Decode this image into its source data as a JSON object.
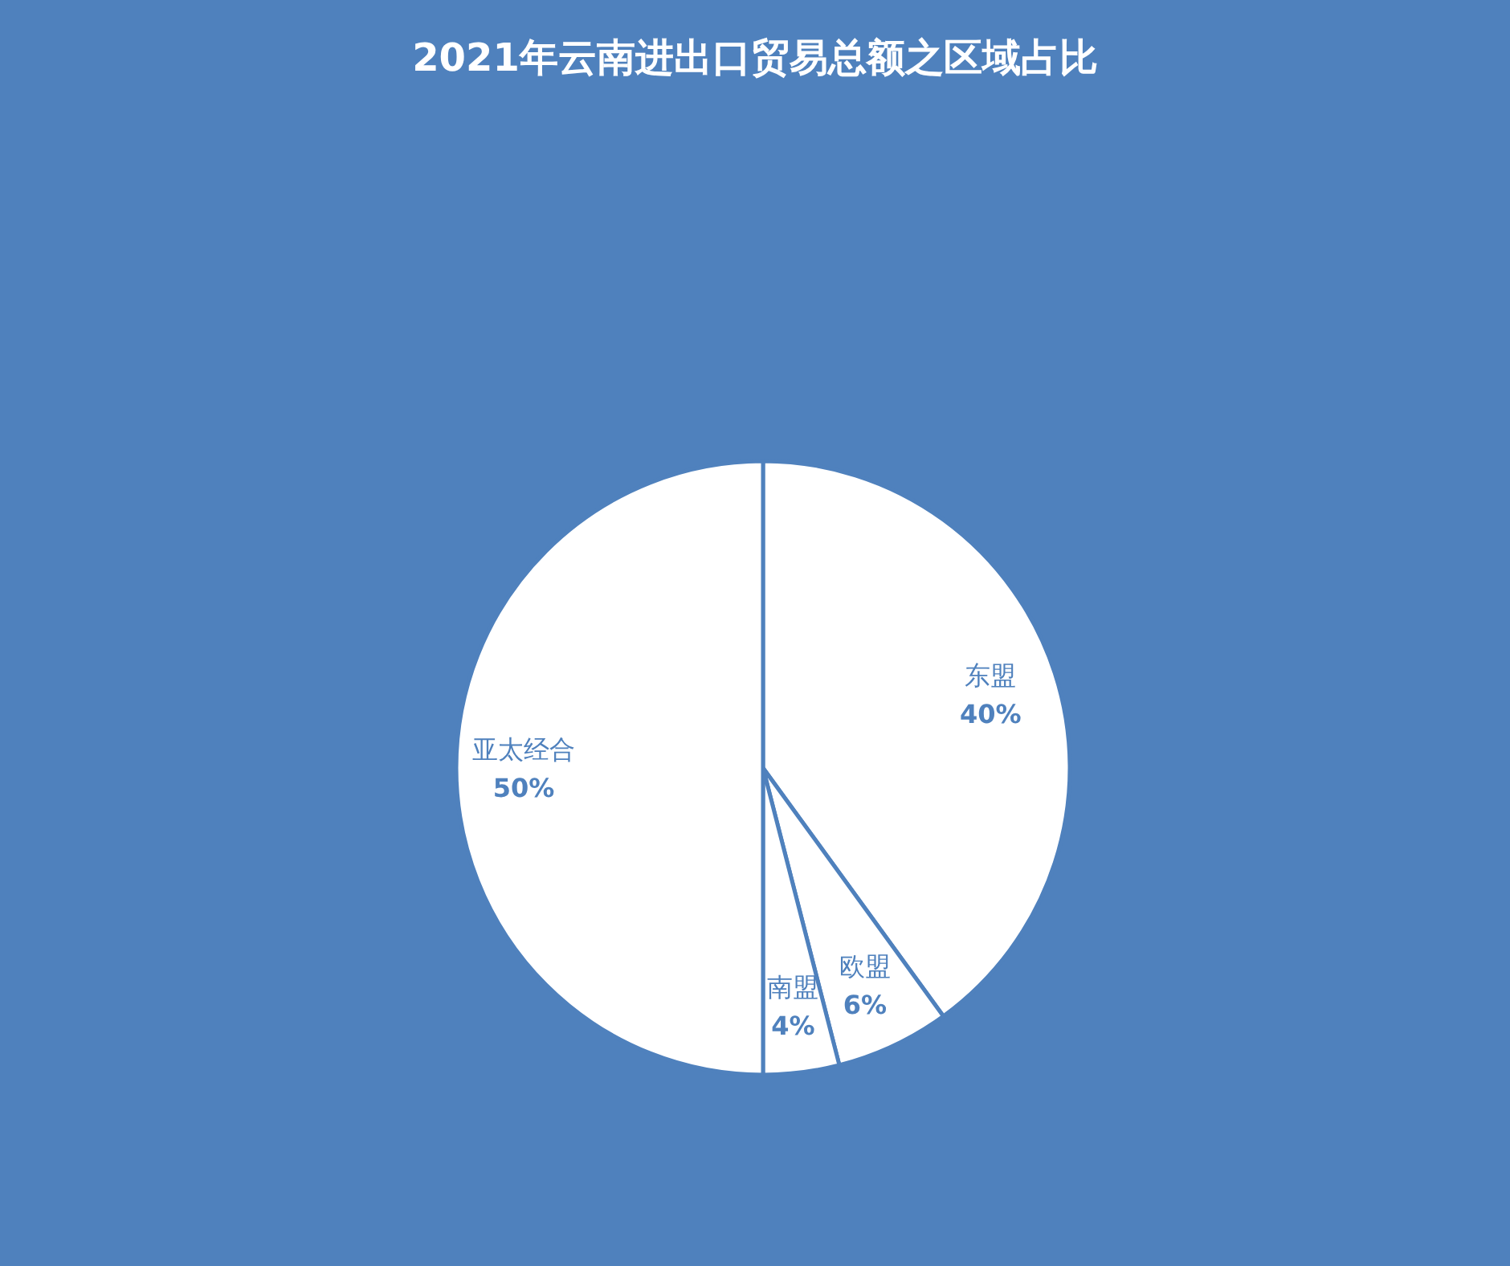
{
  "chart_data": {
    "type": "pie",
    "title": "2021年云南进出口贸易总额之区域占比",
    "categories": [
      "东盟",
      "欧盟",
      "南盟",
      "亚太经合"
    ],
    "values": [
      40,
      6,
      4,
      50
    ],
    "colors": [
      "#ffffff",
      "#ffffff",
      "#ffffff",
      "#ffffff"
    ],
    "value_labels": [
      "40%",
      "6%",
      "4%",
      "50%"
    ]
  }
}
